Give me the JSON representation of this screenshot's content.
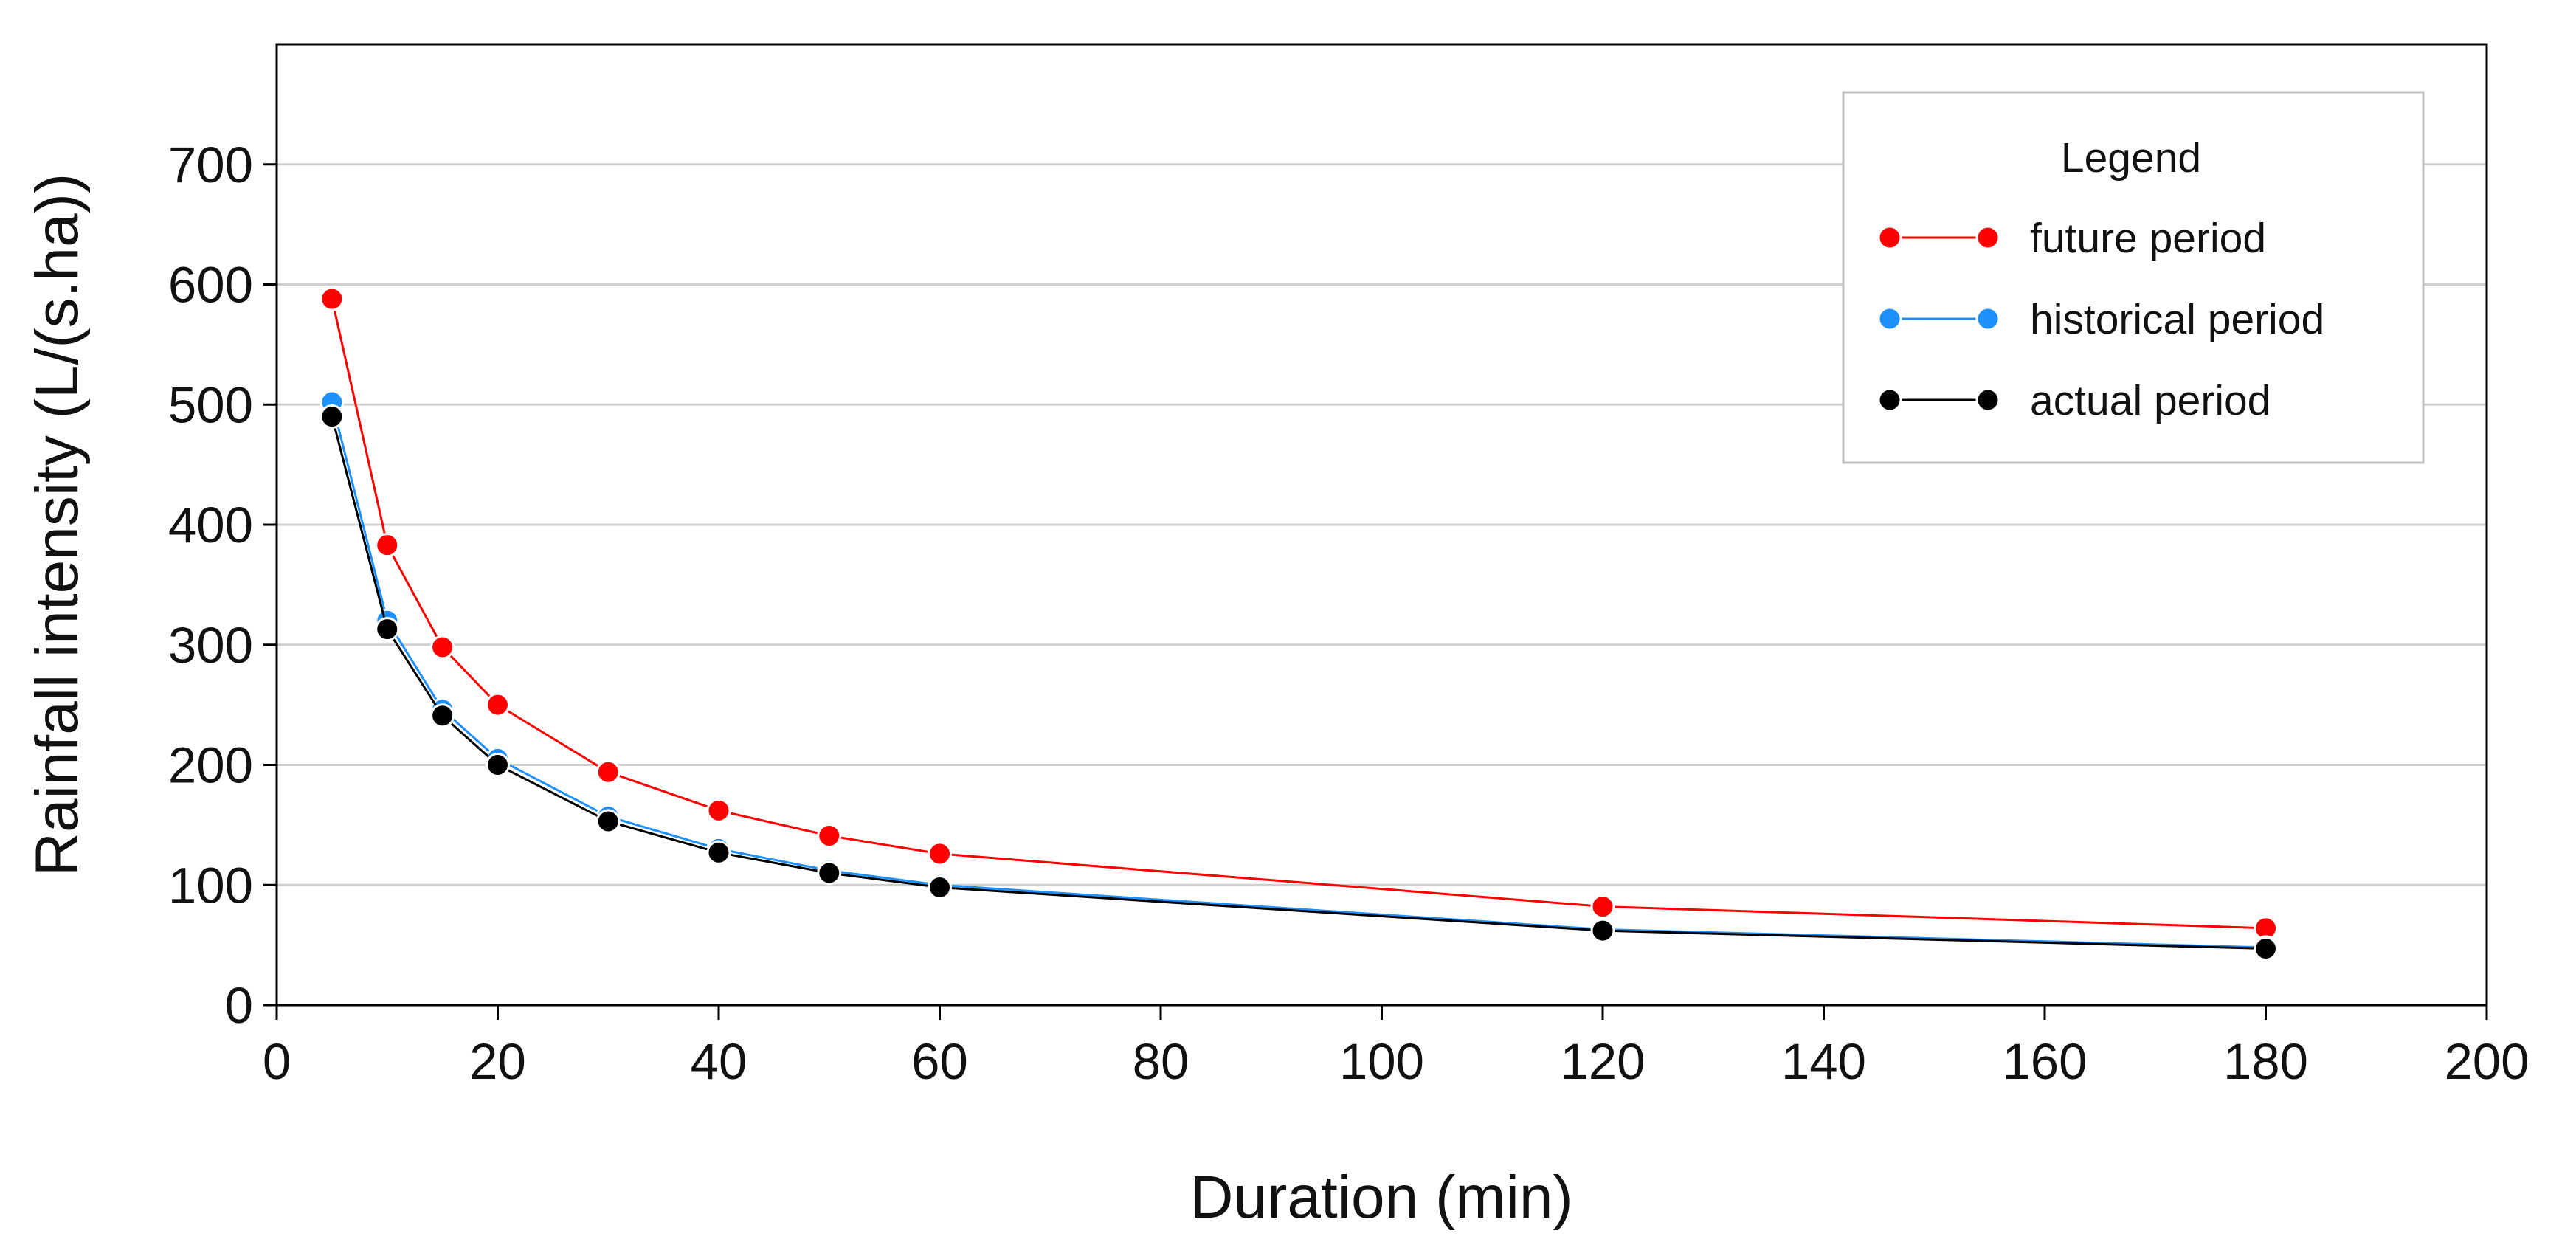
{
  "chart_data": {
    "type": "line",
    "title": "",
    "xlabel": "Duration (min)",
    "ylabel": "Rainfall intensity (L/(s.ha))",
    "xlim": [
      0,
      200
    ],
    "ylim": [
      0,
      800
    ],
    "x_ticks": [
      "0",
      "20",
      "40",
      "60",
      "80",
      "100",
      "120",
      "140",
      "160",
      "180",
      "200"
    ],
    "y_ticks": [
      "0",
      "100",
      "200",
      "300",
      "400",
      "500",
      "600",
      "700"
    ],
    "grid": "horizontal",
    "legend": {
      "title": "Legend",
      "position": "top-right"
    },
    "x": [
      5,
      10,
      15,
      20,
      30,
      40,
      50,
      60,
      120,
      180
    ],
    "series": [
      {
        "name": "future period",
        "color": "#ff0000",
        "values": [
          588,
          383,
          298,
          250,
          194,
          162,
          141,
          126,
          82,
          64
        ]
      },
      {
        "name": "historical period",
        "color": "#1e90ff",
        "values": [
          502,
          320,
          246,
          205,
          157,
          130,
          112,
          100,
          63,
          48
        ]
      },
      {
        "name": "actual period",
        "color": "#000000",
        "values": [
          490,
          313,
          241,
          200,
          153,
          127,
          110,
          98,
          62,
          47
        ]
      }
    ]
  }
}
